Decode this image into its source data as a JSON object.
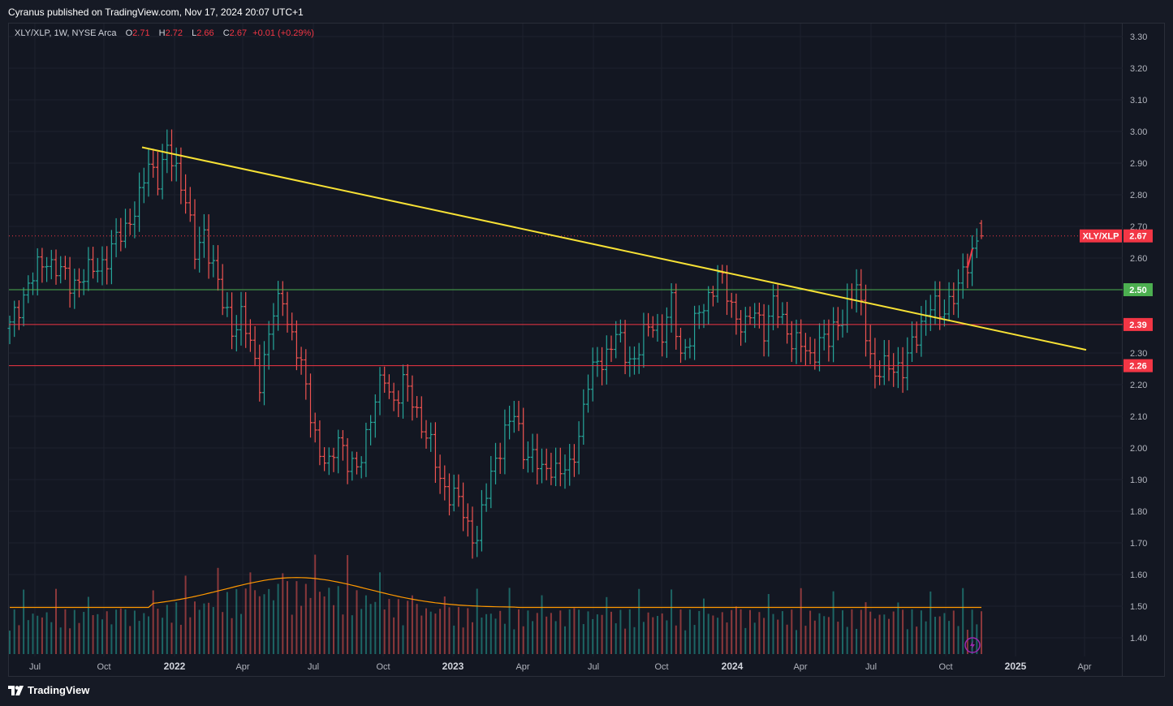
{
  "header": {
    "publisher_text": "Cyranus published on TradingView.com, Nov 17, 2024 20:07 UTC+1"
  },
  "legend": {
    "symbol": "XLY/XLP, 1W, NYSE Arca",
    "open_label": "O",
    "open": "2.71",
    "high_label": "H",
    "high": "2.72",
    "low_label": "L",
    "low": "2.66",
    "close_label": "C",
    "close": "2.67",
    "change": "+0.01 (+0.29%)"
  },
  "footer": {
    "brand": "TradingView"
  },
  "colors": {
    "background": "#131722",
    "grid": "#1e222d",
    "up": "#26a69a",
    "down": "#ef5350",
    "trendline": "#f7e135",
    "support_green": "#4caf50",
    "support_red": "#f23645",
    "volume_ma": "#ff9800"
  },
  "chart_data": {
    "type": "ohlc",
    "interval": "1W",
    "price_axis": {
      "ylim": [
        1.35,
        3.35
      ],
      "ticks": [
        "1.40",
        "1.50",
        "1.60",
        "1.70",
        "1.80",
        "1.90",
        "2.00",
        "2.10",
        "2.20",
        "2.30",
        "2.40",
        "2.50",
        "2.60",
        "2.70",
        "2.80",
        "2.90",
        "3.00",
        "3.10",
        "3.20",
        "3.30"
      ]
    },
    "time_axis": {
      "ticks": [
        "Jul",
        "Oct",
        "2022",
        "Apr",
        "Jul",
        "Oct",
        "2023",
        "Apr",
        "Jul",
        "Oct",
        "2024",
        "Apr",
        "Jul",
        "Oct",
        "2025",
        "Apr"
      ],
      "bold_ticks": [
        "2022",
        "2023",
        "2024",
        "2025"
      ]
    },
    "price_anchor_weekly": [
      [
        0,
        2.38
      ],
      [
        4,
        2.52
      ],
      [
        8,
        2.6
      ],
      [
        13,
        2.52
      ],
      [
        17,
        2.55
      ],
      [
        21,
        2.6
      ],
      [
        25,
        2.7
      ],
      [
        28,
        2.78
      ],
      [
        30,
        2.9
      ],
      [
        32,
        2.86
      ],
      [
        34,
        2.93
      ],
      [
        36,
        2.88
      ],
      [
        38,
        2.8
      ],
      [
        40,
        2.6
      ],
      [
        42,
        2.68
      ],
      [
        44,
        2.58
      ],
      [
        46,
        2.45
      ],
      [
        48,
        2.38
      ],
      [
        50,
        2.42
      ],
      [
        52,
        2.32
      ],
      [
        54,
        2.22
      ],
      [
        57,
        2.42
      ],
      [
        59,
        2.48
      ],
      [
        61,
        2.35
      ],
      [
        63,
        2.25
      ],
      [
        65,
        2.12
      ],
      [
        67,
        1.98
      ],
      [
        69,
        1.93
      ],
      [
        71,
        2.05
      ],
      [
        73,
        1.95
      ],
      [
        75,
        1.92
      ],
      [
        77,
        2.05
      ],
      [
        79,
        2.15
      ],
      [
        81,
        2.22
      ],
      [
        83,
        2.15
      ],
      [
        85,
        2.2
      ],
      [
        87,
        2.15
      ],
      [
        89,
        2.08
      ],
      [
        91,
        2.0
      ],
      [
        93,
        1.9
      ],
      [
        95,
        1.86
      ],
      [
        97,
        1.83
      ],
      [
        99,
        1.75
      ],
      [
        101,
        1.72
      ],
      [
        103,
        1.85
      ],
      [
        105,
        1.97
      ],
      [
        107,
        2.05
      ],
      [
        109,
        2.1
      ],
      [
        111,
        2.0
      ],
      [
        113,
        1.97
      ],
      [
        115,
        1.92
      ],
      [
        117,
        1.95
      ],
      [
        119,
        1.92
      ],
      [
        121,
        1.93
      ],
      [
        123,
        2.05
      ],
      [
        125,
        2.2
      ],
      [
        127,
        2.27
      ],
      [
        129,
        2.3
      ],
      [
        131,
        2.35
      ],
      [
        133,
        2.3
      ],
      [
        135,
        2.28
      ],
      [
        137,
        2.35
      ],
      [
        139,
        2.4
      ],
      [
        141,
        2.36
      ],
      [
        143,
        2.45
      ],
      [
        145,
        2.3
      ],
      [
        147,
        2.35
      ],
      [
        149,
        2.42
      ],
      [
        151,
        2.48
      ],
      [
        153,
        2.55
      ],
      [
        155,
        2.48
      ],
      [
        157,
        2.42
      ],
      [
        159,
        2.38
      ],
      [
        161,
        2.43
      ],
      [
        163,
        2.38
      ],
      [
        165,
        2.45
      ],
      [
        167,
        2.4
      ],
      [
        169,
        2.35
      ],
      [
        171,
        2.32
      ],
      [
        173,
        2.28
      ],
      [
        175,
        2.35
      ],
      [
        177,
        2.33
      ],
      [
        179,
        2.4
      ],
      [
        181,
        2.45
      ],
      [
        183,
        2.5
      ],
      [
        185,
        2.38
      ],
      [
        187,
        2.22
      ],
      [
        189,
        2.25
      ],
      [
        191,
        2.27
      ],
      [
        193,
        2.24
      ],
      [
        195,
        2.32
      ],
      [
        197,
        2.4
      ],
      [
        199,
        2.45
      ],
      [
        201,
        2.42
      ],
      [
        203,
        2.47
      ],
      [
        205,
        2.5
      ],
      [
        207,
        2.58
      ],
      [
        209,
        2.67
      ]
    ],
    "last_bar": {
      "open": 2.71,
      "high": 2.72,
      "low": 2.66,
      "close": 2.67
    },
    "volume": {
      "series": "weekly volume bars with moving average",
      "ma_shape": "flat ~1.49, rising to a peak around May-Jun 2022, declining through late 2022, flat afterwards"
    },
    "annotations": {
      "trendline": {
        "from": {
          "date": "Nov 2021",
          "price": 2.95
        },
        "to": {
          "date": "Apr 2025",
          "price": 2.31
        }
      },
      "horizontal_lines": [
        {
          "price": 2.5,
          "label": "2.50",
          "color": "#4caf50"
        },
        {
          "price": 2.39,
          "label": "2.39",
          "color": "#f23645"
        },
        {
          "price": 2.26,
          "label": "2.26",
          "color": "#f23645"
        }
      ],
      "last_price_label": {
        "symbol": "XLY/XLP",
        "value": "2.67"
      }
    }
  }
}
